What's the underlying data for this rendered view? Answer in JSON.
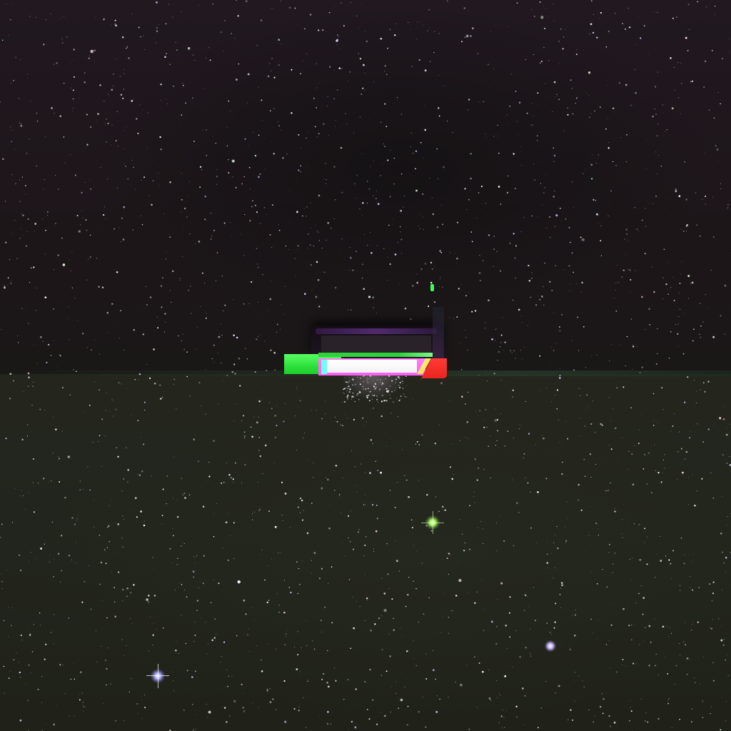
{
  "scene": {
    "subject": "starfield",
    "colors": {
      "upper_sky": "#1d1619",
      "lower_sky": "#22251d",
      "glitch_green": "#2ee03c",
      "glitch_pink": "#f85ff2",
      "glitch_white": "#ffffff",
      "glitch_red": "#e8261f",
      "glitch_yellow": "#f0d64a",
      "glitch_cyan": "#6ffff6",
      "bright_star_green": "#b7ff6a",
      "bright_star_blue": "#b9b6ff",
      "bright_star_violet": "#cbb9ff"
    }
  }
}
